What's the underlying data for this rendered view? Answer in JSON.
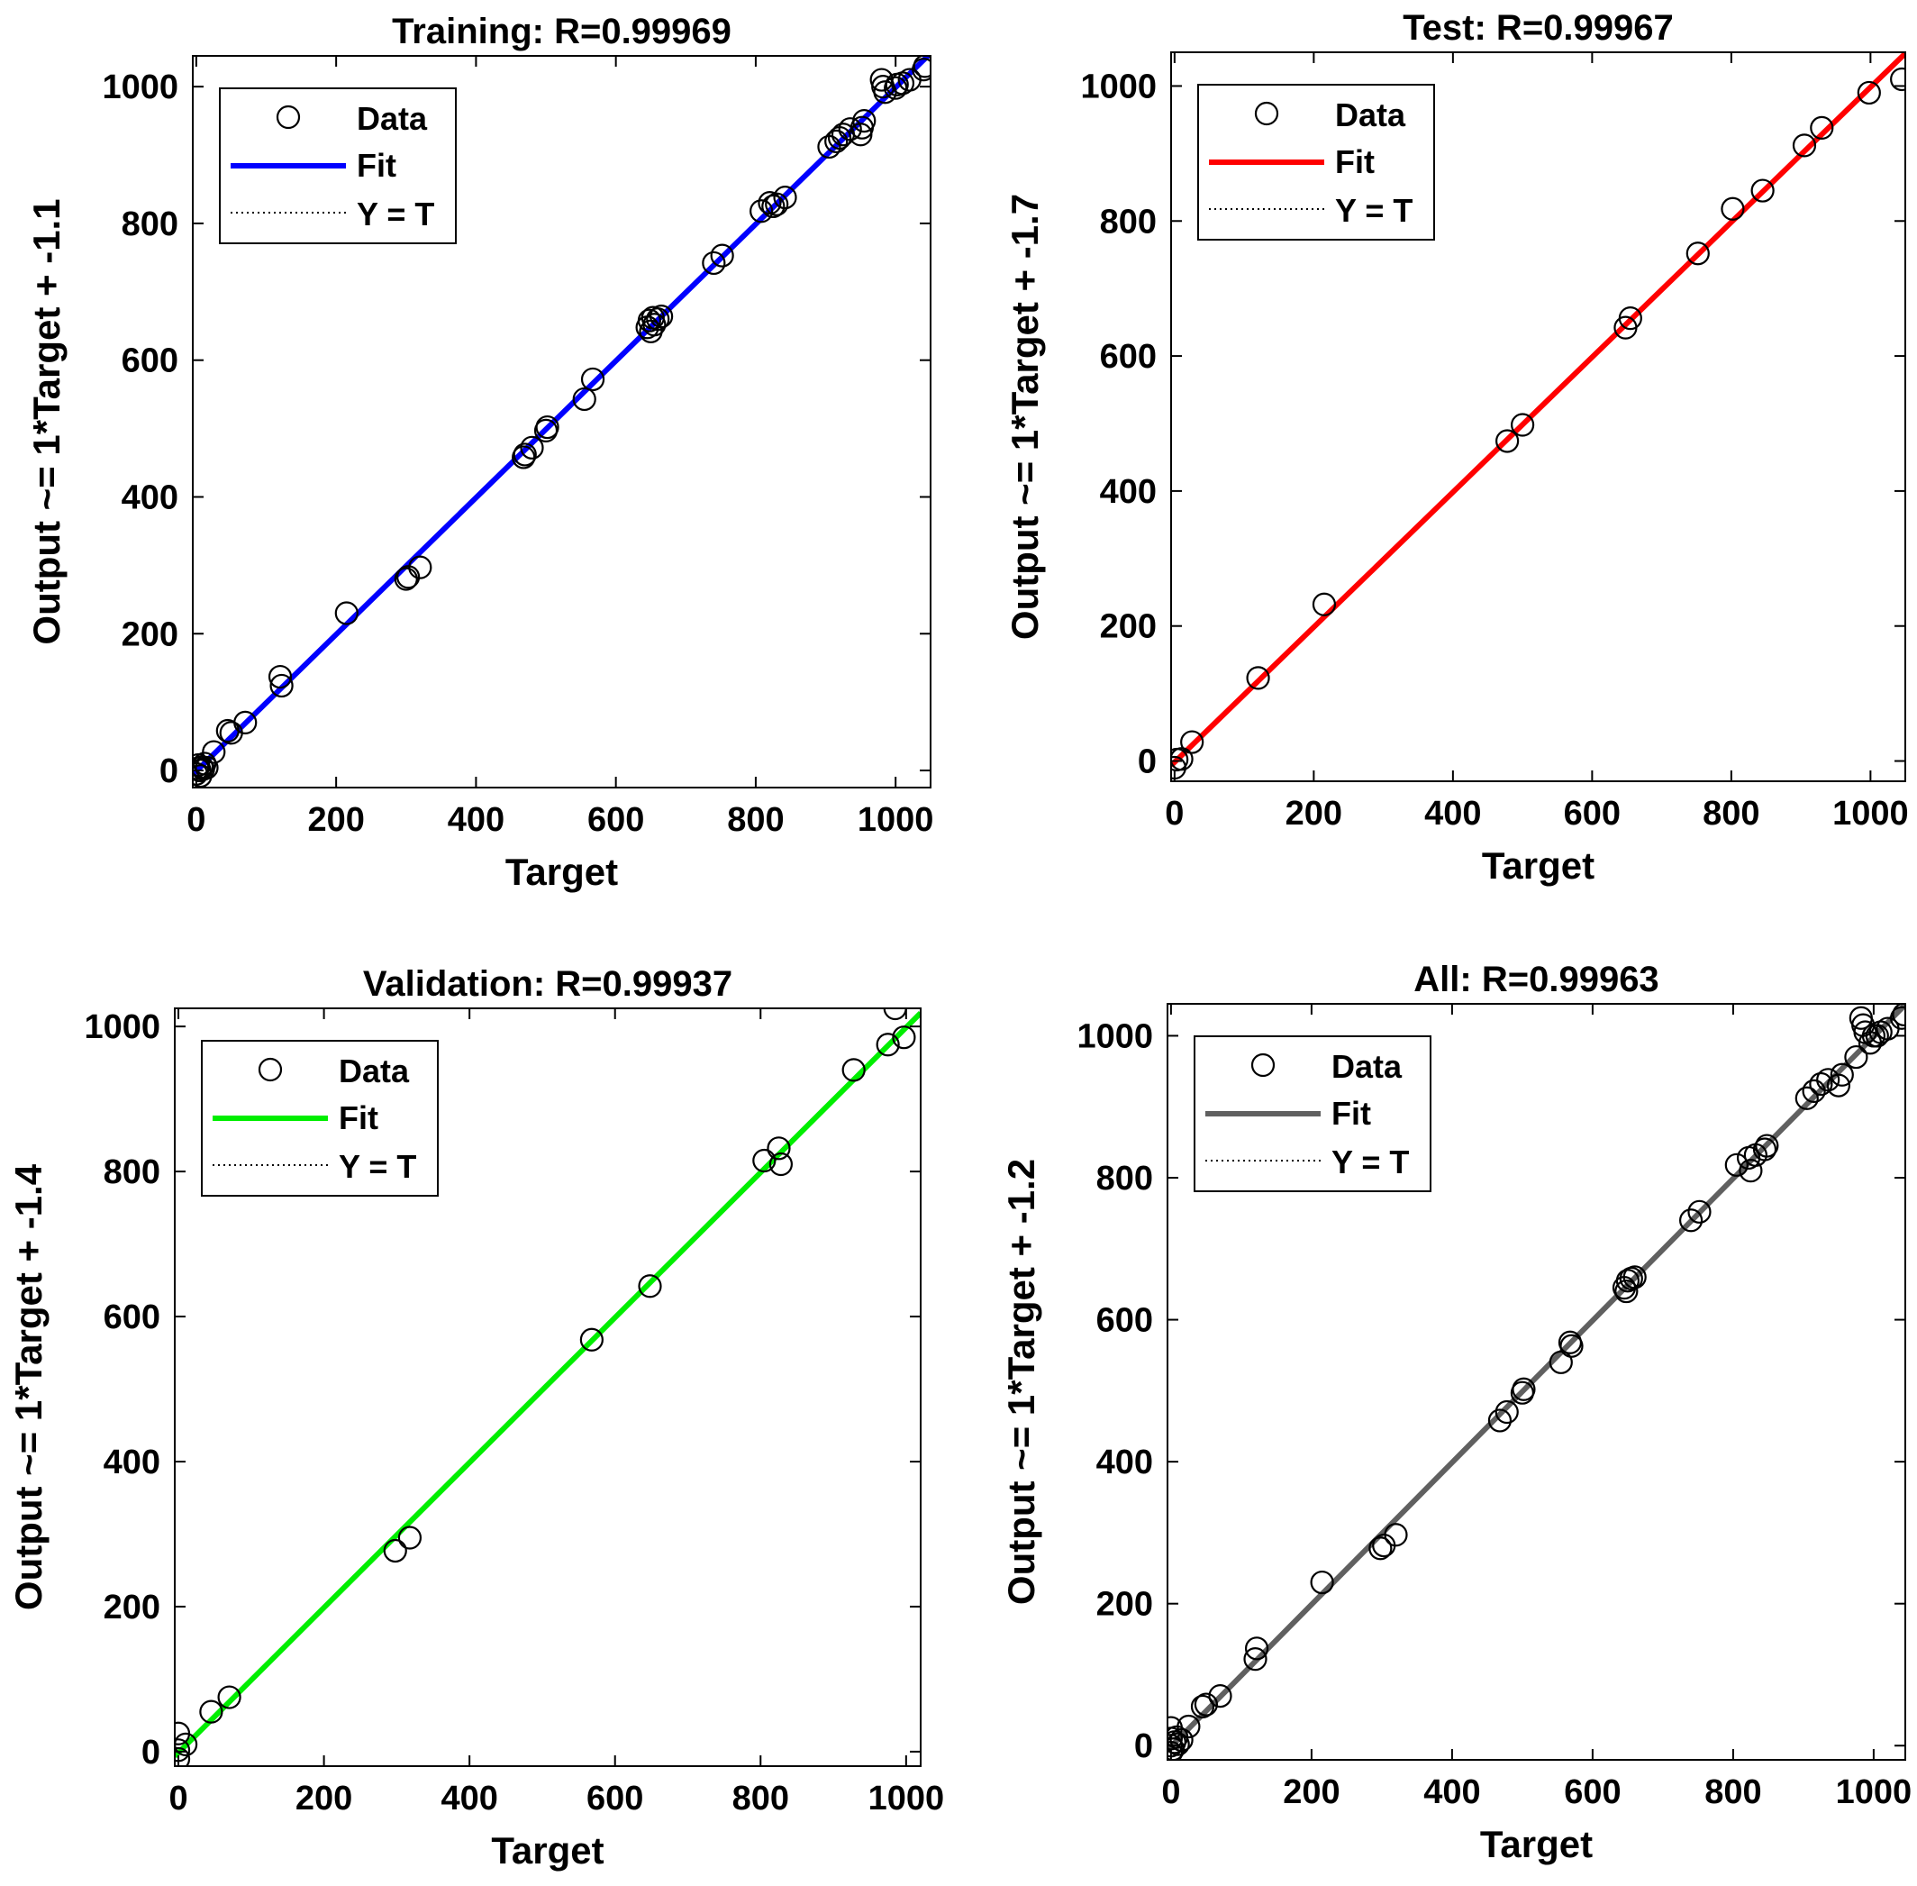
{
  "chart_data": [
    {
      "type": "scatter",
      "title": "Training: R=0.99969",
      "xlabel": "Target",
      "ylabel": "Output ~= 1*Target + -1.1",
      "xlim": [
        -5,
        1050
      ],
      "ylim": [
        -25,
        1045
      ],
      "xticks": [
        0,
        200,
        400,
        600,
        800,
        1000
      ],
      "yticks": [
        0,
        200,
        400,
        600,
        800,
        1000
      ],
      "grid": false,
      "legend_position": "top-left",
      "legend": {
        "data_label": "Data",
        "fit_label": "Fit",
        "yt_label": "Y = T"
      },
      "fit": {
        "slope": 1,
        "intercept": -1.1,
        "color": "#0000ff"
      },
      "points": [
        [
          0,
          -5
        ],
        [
          2,
          3
        ],
        [
          3,
          8
        ],
        [
          5,
          0
        ],
        [
          6,
          -8
        ],
        [
          8,
          5
        ],
        [
          10,
          2
        ],
        [
          12,
          10
        ],
        [
          15,
          4
        ],
        [
          25,
          27
        ],
        [
          45,
          58
        ],
        [
          50,
          55
        ],
        [
          70,
          70
        ],
        [
          120,
          137
        ],
        [
          122,
          124
        ],
        [
          215,
          230
        ],
        [
          300,
          280
        ],
        [
          303,
          283
        ],
        [
          320,
          297
        ],
        [
          468,
          458
        ],
        [
          470,
          462
        ],
        [
          480,
          472
        ],
        [
          500,
          497
        ],
        [
          502,
          502
        ],
        [
          555,
          543
        ],
        [
          567,
          572
        ],
        [
          645,
          648
        ],
        [
          648,
          658
        ],
        [
          650,
          642
        ],
        [
          653,
          662
        ],
        [
          655,
          652
        ],
        [
          660,
          660
        ],
        [
          665,
          664
        ],
        [
          740,
          742
        ],
        [
          752,
          753
        ],
        [
          808,
          818
        ],
        [
          820,
          830
        ],
        [
          825,
          825
        ],
        [
          830,
          828
        ],
        [
          842,
          838
        ],
        [
          905,
          912
        ],
        [
          915,
          920
        ],
        [
          920,
          925
        ],
        [
          925,
          930
        ],
        [
          935,
          938
        ],
        [
          950,
          930
        ],
        [
          952,
          940
        ],
        [
          955,
          950
        ],
        [
          980,
          1010
        ],
        [
          982,
          1000
        ],
        [
          985,
          992
        ],
        [
          1000,
          998
        ],
        [
          1002,
          1003
        ],
        [
          1010,
          1005
        ],
        [
          1020,
          1010
        ],
        [
          1040,
          1025
        ],
        [
          1042,
          1030
        ]
      ]
    },
    {
      "type": "scatter",
      "title": "Test: R=0.99967",
      "xlabel": "Target",
      "ylabel": "Output ~= 1*Target + -1.7",
      "xlim": [
        -5,
        1050
      ],
      "ylim": [
        -30,
        1050
      ],
      "xticks": [
        0,
        200,
        400,
        600,
        800,
        1000
      ],
      "yticks": [
        0,
        200,
        400,
        600,
        800,
        1000
      ],
      "grid": false,
      "legend_position": "top-left",
      "legend": {
        "data_label": "Data",
        "fit_label": "Fit",
        "yt_label": "Y = T"
      },
      "fit": {
        "slope": 1,
        "intercept": -1.7,
        "color": "#ff0000"
      },
      "points": [
        [
          0,
          -10
        ],
        [
          3,
          2
        ],
        [
          10,
          3
        ],
        [
          25,
          28
        ],
        [
          120,
          123
        ],
        [
          215,
          232
        ],
        [
          478,
          474
        ],
        [
          500,
          498
        ],
        [
          648,
          642
        ],
        [
          655,
          656
        ],
        [
          752,
          752
        ],
        [
          802,
          818
        ],
        [
          845,
          845
        ],
        [
          905,
          912
        ],
        [
          930,
          938
        ],
        [
          998,
          990
        ],
        [
          1045,
          1010
        ]
      ]
    },
    {
      "type": "scatter",
      "title": "Validation: R=0.99937",
      "xlabel": "Target",
      "ylabel": "Output ~= 1*Target + -1.4",
      "xlim": [
        -5,
        1020
      ],
      "ylim": [
        -20,
        1025
      ],
      "xticks": [
        0,
        200,
        400,
        600,
        800,
        1000
      ],
      "yticks": [
        0,
        200,
        400,
        600,
        800,
        1000
      ],
      "grid": false,
      "legend_position": "top-left",
      "legend": {
        "data_label": "Data",
        "fit_label": "Fit",
        "yt_label": "Y = T"
      },
      "fit": {
        "slope": 1,
        "intercept": -1.4,
        "color": "#00ee00"
      },
      "points": [
        [
          0,
          -10
        ],
        [
          0,
          2
        ],
        [
          0,
          25
        ],
        [
          10,
          10
        ],
        [
          45,
          55
        ],
        [
          70,
          75
        ],
        [
          298,
          277
        ],
        [
          318,
          295
        ],
        [
          568,
          568
        ],
        [
          648,
          642
        ],
        [
          805,
          815
        ],
        [
          825,
          832
        ],
        [
          828,
          810
        ],
        [
          928,
          940
        ],
        [
          975,
          975
        ],
        [
          985,
          1025
        ],
        [
          997,
          985
        ]
      ]
    },
    {
      "type": "scatter",
      "title": "All: R=0.99963",
      "xlabel": "Target",
      "ylabel": "Output ~= 1*Target + -1.2",
      "xlim": [
        -5,
        1045
      ],
      "ylim": [
        -20,
        1045
      ],
      "xticks": [
        0,
        200,
        400,
        600,
        800,
        1000
      ],
      "yticks": [
        0,
        200,
        400,
        600,
        800,
        1000
      ],
      "grid": false,
      "legend_position": "top-left",
      "legend": {
        "data_label": "Data",
        "fit_label": "Fit",
        "yt_label": "Y = T"
      },
      "fit": {
        "slope": 1,
        "intercept": -1.2,
        "color": "#606060"
      },
      "points": [
        [
          0,
          -10
        ],
        [
          0,
          0
        ],
        [
          0,
          10
        ],
        [
          0,
          25
        ],
        [
          3,
          -5
        ],
        [
          5,
          5
        ],
        [
          8,
          12
        ],
        [
          10,
          2
        ],
        [
          15,
          8
        ],
        [
          25,
          27
        ],
        [
          45,
          55
        ],
        [
          50,
          58
        ],
        [
          70,
          70
        ],
        [
          120,
          122
        ],
        [
          122,
          137
        ],
        [
          215,
          230
        ],
        [
          298,
          278
        ],
        [
          303,
          282
        ],
        [
          320,
          297
        ],
        [
          468,
          458
        ],
        [
          478,
          470
        ],
        [
          500,
          497
        ],
        [
          502,
          502
        ],
        [
          555,
          540
        ],
        [
          568,
          568
        ],
        [
          570,
          563
        ],
        [
          645,
          645
        ],
        [
          648,
          640
        ],
        [
          650,
          655
        ],
        [
          655,
          658
        ],
        [
          660,
          660
        ],
        [
          740,
          740
        ],
        [
          752,
          752
        ],
        [
          805,
          818
        ],
        [
          822,
          828
        ],
        [
          825,
          810
        ],
        [
          832,
          832
        ],
        [
          845,
          840
        ],
        [
          848,
          845
        ],
        [
          905,
          912
        ],
        [
          915,
          922
        ],
        [
          925,
          932
        ],
        [
          935,
          938
        ],
        [
          950,
          930
        ],
        [
          955,
          945
        ],
        [
          975,
          970
        ],
        [
          982,
          1025
        ],
        [
          985,
          1015
        ],
        [
          988,
          1005
        ],
        [
          995,
          990
        ],
        [
          1000,
          1000
        ],
        [
          1005,
          1000
        ],
        [
          1010,
          1005
        ],
        [
          1020,
          1010
        ],
        [
          1040,
          1025
        ],
        [
          1043,
          1030
        ]
      ]
    }
  ]
}
